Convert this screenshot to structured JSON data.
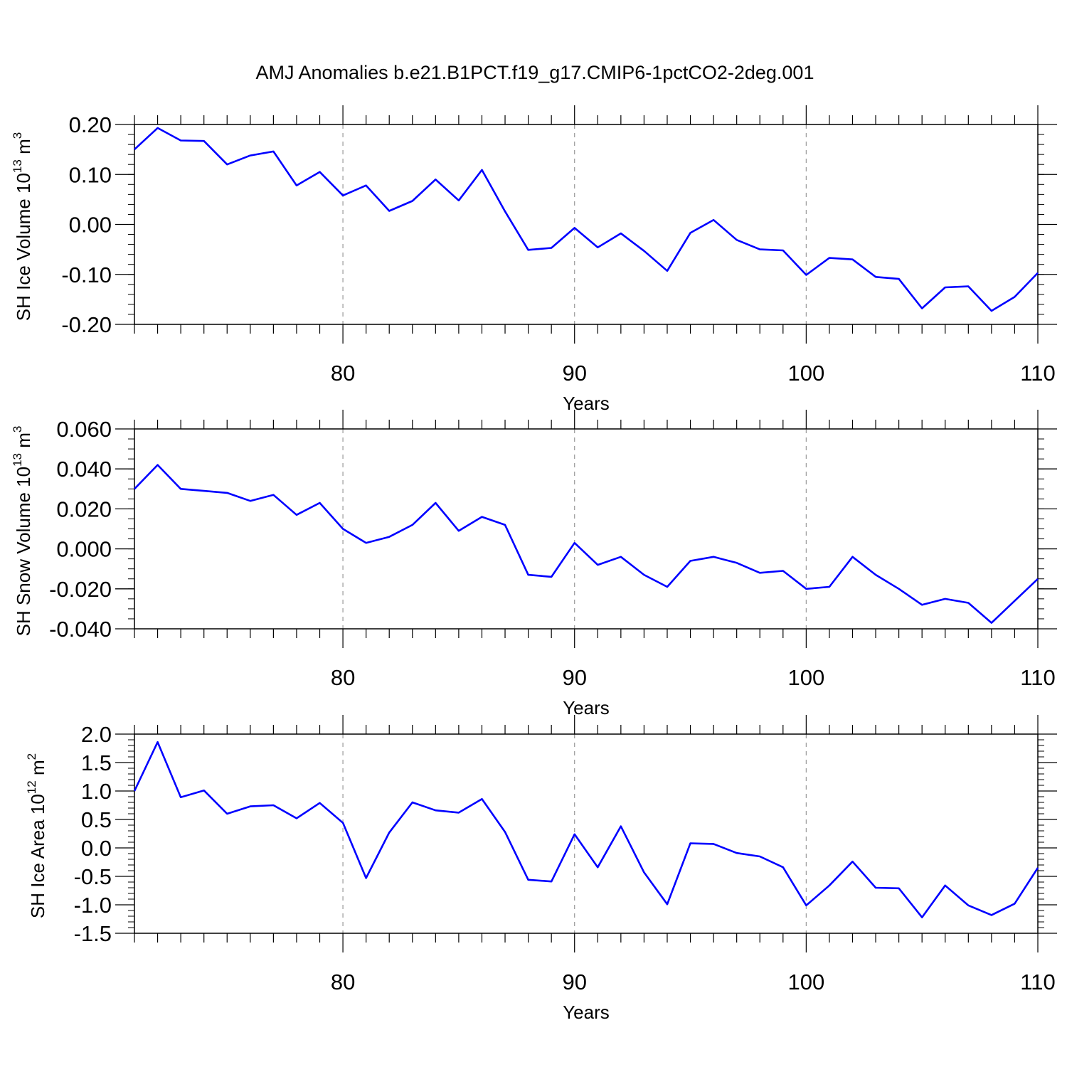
{
  "figure": {
    "title": "AMJ Anomalies b.e21.B1PCT.f19_g17.CMIP6-1pctCO2-2deg.001"
  },
  "colors": {
    "series": "#0000ff",
    "axis": "#000000",
    "grid": "#999999",
    "background": "#ffffff"
  },
  "chart_data": [
    {
      "type": "line",
      "ylabel": {
        "prefix": "SH Ice Volume 10",
        "sup": "13",
        "unit": " m",
        "unit_sup": "3"
      },
      "xlabel": "Years",
      "xlim": [
        71,
        110
      ],
      "ylim": [
        -0.2,
        0.2
      ],
      "xticks": [
        "80",
        "90",
        "100",
        "110"
      ],
      "xtick_values": [
        80,
        90,
        100,
        110
      ],
      "yticks": [
        "-0.20",
        "-0.10",
        "0.00",
        "0.10",
        "0.20"
      ],
      "ytick_values": [
        -0.2,
        -0.1,
        0.0,
        0.1,
        0.2
      ],
      "yminor": 0.02,
      "grid": "vertical dashed at major x ticks",
      "x": [
        71,
        72,
        73,
        74,
        75,
        76,
        77,
        78,
        79,
        80,
        81,
        82,
        83,
        84,
        85,
        86,
        87,
        88,
        89,
        90,
        91,
        92,
        93,
        94,
        95,
        96,
        97,
        98,
        99,
        100,
        101,
        102,
        103,
        104,
        105,
        106,
        107,
        108,
        109,
        110
      ],
      "values": [
        0.15,
        0.193,
        0.168,
        0.167,
        0.12,
        0.138,
        0.146,
        0.078,
        0.105,
        0.058,
        0.078,
        0.027,
        0.047,
        0.09,
        0.048,
        0.109,
        0.026,
        -0.051,
        -0.047,
        -0.007,
        -0.046,
        -0.018,
        -0.053,
        -0.093,
        -0.017,
        0.009,
        -0.031,
        -0.05,
        -0.052,
        -0.101,
        -0.067,
        -0.07,
        -0.105,
        -0.109,
        -0.168,
        -0.126,
        -0.124,
        -0.173,
        -0.145,
        -0.097
      ]
    },
    {
      "type": "line",
      "ylabel": {
        "prefix": "SH Snow Volume 10",
        "sup": "13",
        "unit": " m",
        "unit_sup": "3"
      },
      "xlabel": "Years",
      "xlim": [
        71,
        110
      ],
      "ylim": [
        -0.04,
        0.06
      ],
      "xticks": [
        "80",
        "90",
        "100",
        "110"
      ],
      "xtick_values": [
        80,
        90,
        100,
        110
      ],
      "yticks": [
        "-0.040",
        "-0.020",
        "0.000",
        "0.020",
        "0.040",
        "0.060"
      ],
      "ytick_values": [
        -0.04,
        -0.02,
        0.0,
        0.02,
        0.04,
        0.06
      ],
      "yminor": 0.005,
      "grid": "vertical dashed at major x ticks",
      "x": [
        71,
        72,
        73,
        74,
        75,
        76,
        77,
        78,
        79,
        80,
        81,
        82,
        83,
        84,
        85,
        86,
        87,
        88,
        89,
        90,
        91,
        92,
        93,
        94,
        95,
        96,
        97,
        98,
        99,
        100,
        101,
        102,
        103,
        104,
        105,
        106,
        107,
        108,
        109,
        110
      ],
      "values": [
        0.03,
        0.042,
        0.03,
        0.029,
        0.028,
        0.024,
        0.027,
        0.017,
        0.023,
        0.01,
        0.003,
        0.006,
        0.012,
        0.023,
        0.009,
        0.016,
        0.012,
        -0.013,
        -0.014,
        0.003,
        -0.008,
        -0.004,
        -0.013,
        -0.019,
        -0.006,
        -0.004,
        -0.007,
        -0.012,
        -0.011,
        -0.02,
        -0.019,
        -0.004,
        -0.013,
        -0.02,
        -0.028,
        -0.025,
        -0.027,
        -0.037,
        -0.026,
        -0.015
      ]
    },
    {
      "type": "line",
      "ylabel": {
        "prefix": "SH Ice Area 10",
        "sup": "12",
        "unit": " m",
        "unit_sup": "2"
      },
      "xlabel": "Years",
      "xlim": [
        71,
        110
      ],
      "ylim": [
        -1.5,
        2.0
      ],
      "xticks": [
        "80",
        "90",
        "100",
        "110"
      ],
      "xtick_values": [
        80,
        90,
        100,
        110
      ],
      "yticks": [
        "-1.5",
        "-1.0",
        "-0.5",
        "0.0",
        "0.5",
        "1.0",
        "1.5",
        "2.0"
      ],
      "ytick_values": [
        -1.5,
        -1.0,
        -0.5,
        0.0,
        0.5,
        1.0,
        1.5,
        2.0
      ],
      "yminor": 0.1,
      "grid": "vertical dashed at major x ticks",
      "x": [
        71,
        72,
        73,
        74,
        75,
        76,
        77,
        78,
        79,
        80,
        81,
        82,
        83,
        84,
        85,
        86,
        87,
        88,
        89,
        90,
        91,
        92,
        93,
        94,
        95,
        96,
        97,
        98,
        99,
        100,
        101,
        102,
        103,
        104,
        105,
        106,
        107,
        108,
        109,
        110
      ],
      "values": [
        1.0,
        1.86,
        0.89,
        1.01,
        0.6,
        0.73,
        0.75,
        0.52,
        0.79,
        0.44,
        -0.53,
        0.27,
        0.8,
        0.66,
        0.62,
        0.86,
        0.28,
        -0.56,
        -0.59,
        0.24,
        -0.34,
        0.38,
        -0.43,
        -0.99,
        0.08,
        0.07,
        -0.09,
        -0.15,
        -0.34,
        -1.01,
        -0.66,
        -0.24,
        -0.7,
        -0.71,
        -1.22,
        -0.66,
        -1.01,
        -1.18,
        -0.98,
        -0.35
      ]
    }
  ]
}
